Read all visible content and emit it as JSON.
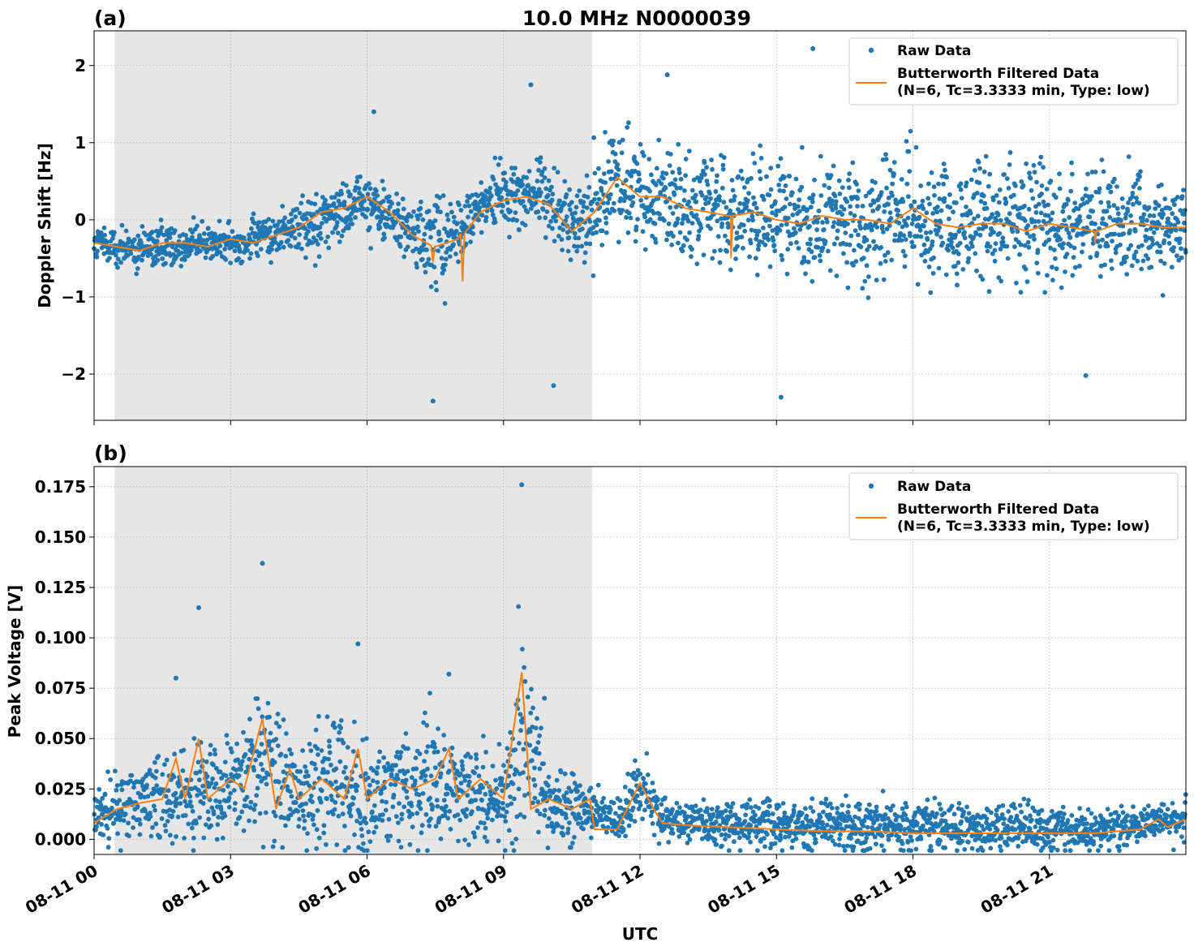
{
  "figure": {
    "title": "10.0 MHz N0000039",
    "xlabel": "UTC"
  },
  "colors": {
    "raw": "#1f77b4",
    "filtered": "#ff7f0e",
    "shade": "#e6e6e6",
    "grid": "#b0b0b0"
  },
  "chart_data": [
    {
      "type": "scatter",
      "panel_label": "(a)",
      "title": "10.0 MHz N0000039",
      "xlabel": "",
      "ylabel": "Doppler Shift [Hz]",
      "x_unit": "hours UTC since 08-11 00:00",
      "xlim": [
        0,
        24
      ],
      "ylim": [
        -2.6,
        2.45
      ],
      "yticks": [
        -2,
        -1,
        0,
        1,
        2
      ],
      "ytick_labels": [
        "−2",
        "−1",
        "0",
        "1",
        "2"
      ],
      "grid": true,
      "legend_position": "top-right",
      "shaded_interval": [
        0.45,
        10.95
      ],
      "series": [
        {
          "name": "Raw Data",
          "kind": "scatter",
          "approx_trend_x": [
            0,
            1,
            2,
            3,
            4,
            5,
            6,
            7,
            7.5,
            8,
            8.5,
            9,
            9.5,
            10,
            10.5,
            11,
            11.5,
            12,
            13,
            14,
            15,
            16,
            17,
            18,
            19,
            20,
            21,
            22,
            23,
            24
          ],
          "approx_trend_y": [
            -0.3,
            -0.4,
            -0.3,
            -0.3,
            -0.2,
            0.0,
            0.25,
            -0.2,
            -0.35,
            -0.2,
            0.2,
            0.3,
            0.35,
            0.3,
            -0.1,
            0.2,
            0.5,
            0.4,
            0.2,
            0.1,
            0.0,
            0.0,
            0.0,
            0.0,
            -0.05,
            -0.05,
            0.0,
            -0.05,
            0.0,
            -0.1
          ],
          "approx_spread_y": [
            0.2,
            0.2,
            0.2,
            0.2,
            0.25,
            0.3,
            0.3,
            0.3,
            0.5,
            0.3,
            0.3,
            0.35,
            0.35,
            0.35,
            0.35,
            0.5,
            0.55,
            0.55,
            0.55,
            0.55,
            0.6,
            0.6,
            0.6,
            0.6,
            0.6,
            0.6,
            0.6,
            0.55,
            0.5,
            0.45
          ],
          "notable_points": [
            [
              15.8,
              2.22
            ],
            [
              12.6,
              1.88
            ],
            [
              9.6,
              1.75
            ],
            [
              6.15,
              1.4
            ],
            [
              7.45,
              -2.35
            ],
            [
              10.1,
              -2.15
            ],
            [
              15.1,
              -2.3
            ],
            [
              21.8,
              -2.02
            ]
          ]
        },
        {
          "name": "Butterworth Filtered Data\n(N=6, Tc=3.3333 min, Type: low)",
          "kind": "line",
          "x": [
            0,
            0.5,
            1,
            1.5,
            2,
            2.5,
            3,
            3.5,
            4,
            4.5,
            5,
            5.5,
            6,
            6.5,
            7,
            7.5,
            8,
            8.5,
            9,
            9.5,
            10,
            10.5,
            11,
            11.5,
            12,
            12.5,
            13,
            13.5,
            14,
            14.5,
            15,
            15.5,
            16,
            16.5,
            17,
            17.5,
            18,
            18.5,
            19,
            19.5,
            20,
            20.5,
            21,
            21.5,
            22,
            22.5,
            23,
            23.5,
            24
          ],
          "y": [
            -0.3,
            -0.35,
            -0.4,
            -0.3,
            -0.3,
            -0.35,
            -0.25,
            -0.3,
            -0.2,
            -0.1,
            0.1,
            0.15,
            0.3,
            0.1,
            -0.2,
            -0.35,
            -0.25,
            0.1,
            0.25,
            0.3,
            0.2,
            -0.15,
            0.1,
            0.55,
            0.3,
            0.3,
            0.15,
            0.1,
            0.05,
            0.1,
            0.0,
            -0.05,
            0.05,
            0.0,
            0.0,
            -0.05,
            0.15,
            -0.05,
            -0.1,
            -0.05,
            -0.05,
            -0.15,
            -0.05,
            -0.1,
            -0.15,
            -0.05,
            -0.05,
            -0.1,
            -0.1
          ],
          "dips": [
            [
              8.1,
              -0.8
            ],
            [
              7.45,
              -0.55
            ],
            [
              14.0,
              -0.5
            ],
            [
              22.0,
              -0.3
            ]
          ]
        }
      ]
    },
    {
      "type": "scatter",
      "panel_label": "(b)",
      "title": "",
      "xlabel": "UTC",
      "ylabel": "Peak Voltage [V]",
      "x_unit": "hours UTC since 08-11 00:00",
      "xlim": [
        0,
        24
      ],
      "ylim": [
        -0.0075,
        0.185
      ],
      "yticks": [
        0.0,
        0.025,
        0.05,
        0.075,
        0.1,
        0.125,
        0.15,
        0.175
      ],
      "ytick_labels": [
        "0.000",
        "0.025",
        "0.050",
        "0.075",
        "0.100",
        "0.125",
        "0.150",
        "0.175"
      ],
      "xticks": [
        0,
        3,
        6,
        9,
        12,
        15,
        18,
        21
      ],
      "xtick_labels": [
        "08-11 00",
        "08-11 03",
        "08-11 06",
        "08-11 09",
        "08-11 12",
        "08-11 15",
        "08-11 18",
        "08-11 21"
      ],
      "grid": true,
      "legend_position": "top-right",
      "shaded_interval": [
        0.45,
        10.95
      ],
      "series": [
        {
          "name": "Raw Data",
          "kind": "scatter",
          "approx_trend_x": [
            0,
            1,
            2,
            3,
            3.7,
            4.5,
            5.5,
            6,
            7,
            7.5,
            8,
            9,
            9.4,
            10,
            10.9,
            11.5,
            12,
            12.5,
            14,
            16,
            18,
            20,
            22,
            23,
            24
          ],
          "approx_trend_y": [
            0.012,
            0.018,
            0.022,
            0.025,
            0.04,
            0.02,
            0.03,
            0.02,
            0.025,
            0.03,
            0.02,
            0.02,
            0.05,
            0.015,
            0.015,
            0.008,
            0.03,
            0.01,
            0.008,
            0.007,
            0.006,
            0.005,
            0.005,
            0.007,
            0.01
          ],
          "approx_spread_y": [
            0.01,
            0.015,
            0.02,
            0.02,
            0.03,
            0.02,
            0.025,
            0.02,
            0.02,
            0.025,
            0.02,
            0.02,
            0.04,
            0.015,
            0.01,
            0.006,
            0.015,
            0.008,
            0.01,
            0.01,
            0.01,
            0.009,
            0.008,
            0.007,
            0.008
          ],
          "notable_points": [
            [
              9.4,
              0.176
            ],
            [
              3.7,
              0.137
            ],
            [
              2.3,
              0.115
            ],
            [
              5.8,
              0.097
            ],
            [
              1.8,
              0.08
            ],
            [
              7.8,
              0.082
            ],
            [
              9.9,
              0.07
            ]
          ]
        },
        {
          "name": "Butterworth Filtered Data\n(N=6, Tc=3.3333 min, Type: low)",
          "kind": "line",
          "x": [
            0,
            0.5,
            1,
            1.5,
            1.8,
            2,
            2.3,
            2.5,
            3,
            3.3,
            3.7,
            4,
            4.3,
            4.5,
            5,
            5.5,
            5.8,
            6,
            6.5,
            7,
            7.5,
            7.8,
            8,
            8.5,
            9,
            9.4,
            9.6,
            10,
            10.5,
            10.9,
            11,
            11.5,
            12,
            12.3,
            12.5,
            13,
            14,
            15,
            16,
            17,
            18,
            19,
            20,
            21,
            22,
            23,
            23.4,
            23.6,
            24
          ],
          "y": [
            0.008,
            0.015,
            0.018,
            0.02,
            0.04,
            0.02,
            0.05,
            0.02,
            0.03,
            0.025,
            0.06,
            0.015,
            0.035,
            0.02,
            0.03,
            0.02,
            0.045,
            0.02,
            0.03,
            0.025,
            0.03,
            0.045,
            0.02,
            0.03,
            0.02,
            0.083,
            0.015,
            0.02,
            0.015,
            0.02,
            0.005,
            0.005,
            0.028,
            0.015,
            0.008,
            0.007,
            0.006,
            0.005,
            0.004,
            0.004,
            0.003,
            0.003,
            0.003,
            0.003,
            0.003,
            0.005,
            0.01,
            0.006,
            0.01
          ]
        }
      ]
    }
  ]
}
